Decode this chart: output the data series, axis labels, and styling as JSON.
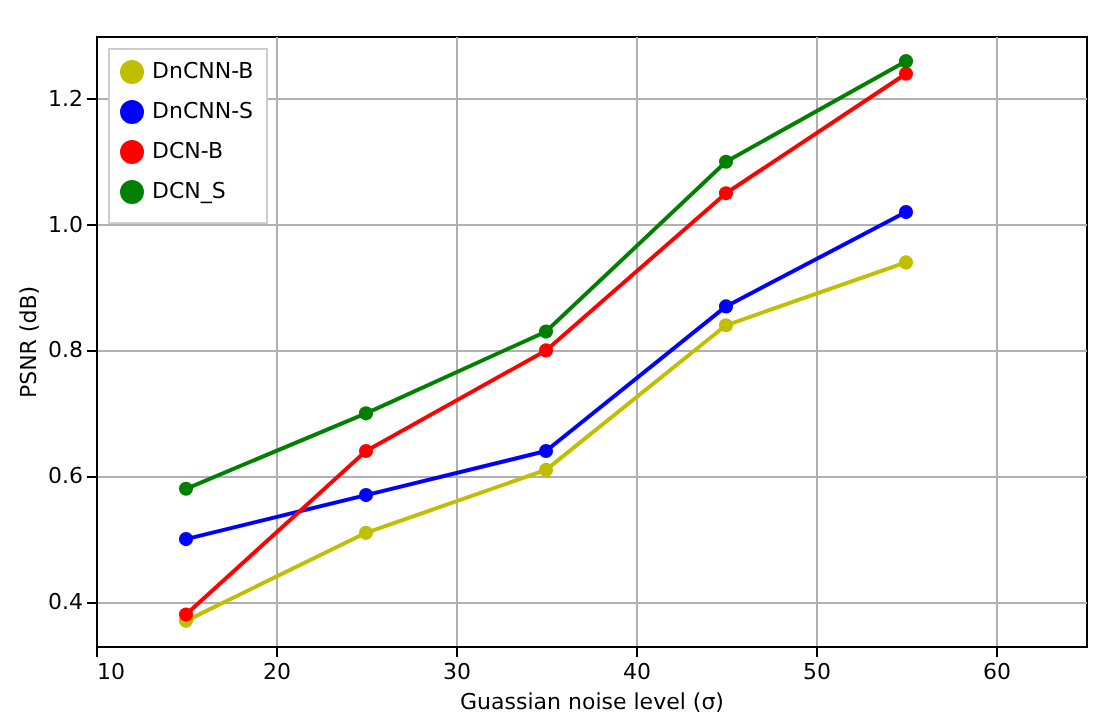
{
  "chart_data": {
    "type": "line",
    "xlabel": "Guassian noise level (σ)",
    "ylabel": "PSNR (dB)",
    "x": [
      15,
      25,
      35,
      45,
      55
    ],
    "series": [
      {
        "name": "DnCNN-B",
        "color": "#bfbf00",
        "values": [
          0.37,
          0.51,
          0.61,
          0.84,
          0.94
        ]
      },
      {
        "name": "DnCNN-S",
        "color": "#0000ff",
        "values": [
          0.5,
          0.57,
          0.64,
          0.87,
          1.02
        ]
      },
      {
        "name": "DCN-B",
        "color": "#ff0000",
        "values": [
          0.38,
          0.64,
          0.8,
          1.05,
          1.24
        ]
      },
      {
        "name": "DCN_S",
        "color": "#008000",
        "values": [
          0.58,
          0.7,
          0.83,
          1.1,
          1.26
        ]
      }
    ],
    "xlim": [
      10,
      65
    ],
    "xticks": [
      10,
      20,
      30,
      40,
      50,
      60
    ],
    "ylim": [
      0.33,
      1.3
    ],
    "yticks": [
      0.4,
      0.6,
      0.8,
      {
        "value": 1,
        "label": "1.0"
      },
      1.2
    ],
    "grid": true,
    "legend": "top left",
    "marker": "circle",
    "line_style": "solid"
  }
}
